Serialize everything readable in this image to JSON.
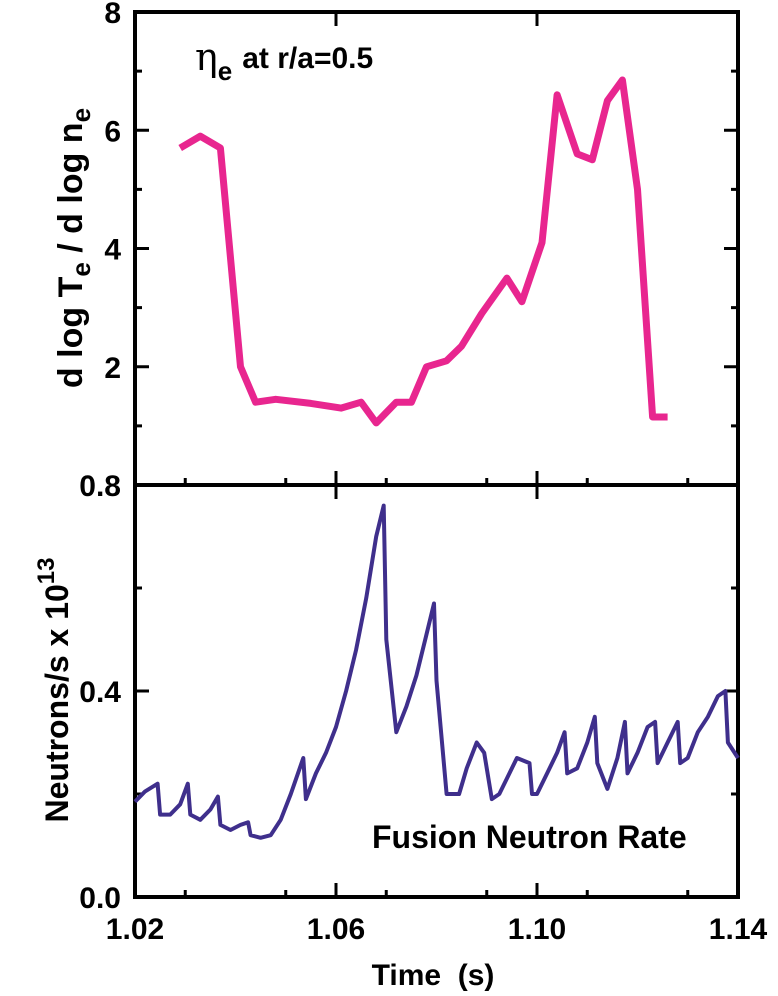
{
  "chart_data": [
    {
      "type": "line",
      "panel": "top",
      "annotation": {
        "symbol": "η",
        "subscript": "e",
        "text": "at r/a=0.5"
      },
      "ylabel": {
        "p1": "d log T",
        "sub1": "e",
        "p2": " / d log n",
        "sub2": "e"
      },
      "xlim": [
        1.02,
        1.14
      ],
      "ylim": [
        0,
        8
      ],
      "yticks": [
        2,
        4,
        6,
        8
      ],
      "ytick_labels": [
        "2",
        "4",
        "6",
        "8"
      ],
      "color": "#e8268f",
      "series": [
        {
          "x": [
            1.029,
            1.033,
            1.037,
            1.041,
            1.044,
            1.048,
            1.055,
            1.061,
            1.065,
            1.068,
            1.072,
            1.075,
            1.078,
            1.082,
            1.085,
            1.089,
            1.094,
            1.097,
            1.101,
            1.104,
            1.108,
            1.111,
            1.114,
            1.117,
            1.12,
            1.123,
            1.126
          ],
          "y": [
            5.7,
            5.9,
            5.7,
            2.0,
            1.4,
            1.45,
            1.38,
            1.3,
            1.4,
            1.05,
            1.4,
            1.4,
            2.0,
            2.1,
            2.35,
            2.9,
            3.5,
            3.1,
            4.1,
            6.6,
            5.6,
            5.5,
            6.5,
            6.85,
            5.0,
            1.15,
            1.15
          ]
        }
      ]
    },
    {
      "type": "line",
      "panel": "bottom",
      "annotation": "Fusion Neutron Rate",
      "ylabel": {
        "base": "Neutrons/s x 10",
        "exp": "13"
      },
      "xlabel": "Time  (s)",
      "xlim": [
        1.02,
        1.14
      ],
      "ylim": [
        0,
        0.8
      ],
      "xticks": [
        1.02,
        1.06,
        1.1,
        1.14
      ],
      "xtick_labels": [
        "1.02",
        "1.06",
        "1.10",
        "1.14"
      ],
      "yticks": [
        0.0,
        0.4,
        0.8
      ],
      "ytick_labels": [
        "0.0",
        "0.4",
        "0.8"
      ],
      "color": "#3f2f8c",
      "series": [
        {
          "x": [
            1.02,
            1.022,
            1.0245,
            1.025,
            1.027,
            1.029,
            1.0305,
            1.031,
            1.033,
            1.035,
            1.0365,
            1.037,
            1.039,
            1.041,
            1.0425,
            1.043,
            1.045,
            1.047,
            1.049,
            1.051,
            1.0535,
            1.054,
            1.056,
            1.058,
            1.06,
            1.062,
            1.064,
            1.066,
            1.068,
            1.0695,
            1.07,
            1.072,
            1.074,
            1.076,
            1.078,
            1.0795,
            1.08,
            1.082,
            1.0845,
            1.086,
            1.088,
            1.0895,
            1.091,
            1.0925,
            1.094,
            1.096,
            1.0985,
            1.099,
            1.1,
            1.102,
            1.104,
            1.1055,
            1.106,
            1.108,
            1.11,
            1.1115,
            1.112,
            1.114,
            1.116,
            1.1175,
            1.118,
            1.12,
            1.122,
            1.1235,
            1.124,
            1.126,
            1.128,
            1.1285,
            1.13,
            1.132,
            1.134,
            1.136,
            1.1375,
            1.138,
            1.14
          ],
          "y": [
            0.185,
            0.205,
            0.22,
            0.16,
            0.16,
            0.18,
            0.22,
            0.16,
            0.15,
            0.17,
            0.195,
            0.14,
            0.13,
            0.14,
            0.145,
            0.12,
            0.115,
            0.12,
            0.15,
            0.2,
            0.27,
            0.19,
            0.24,
            0.28,
            0.33,
            0.4,
            0.48,
            0.58,
            0.7,
            0.76,
            0.5,
            0.32,
            0.37,
            0.43,
            0.51,
            0.57,
            0.42,
            0.2,
            0.2,
            0.25,
            0.3,
            0.28,
            0.19,
            0.2,
            0.23,
            0.27,
            0.26,
            0.2,
            0.2,
            0.24,
            0.28,
            0.32,
            0.24,
            0.25,
            0.3,
            0.35,
            0.26,
            0.21,
            0.27,
            0.34,
            0.24,
            0.28,
            0.33,
            0.34,
            0.26,
            0.3,
            0.34,
            0.26,
            0.27,
            0.32,
            0.35,
            0.39,
            0.4,
            0.3,
            0.27
          ]
        }
      ]
    }
  ]
}
